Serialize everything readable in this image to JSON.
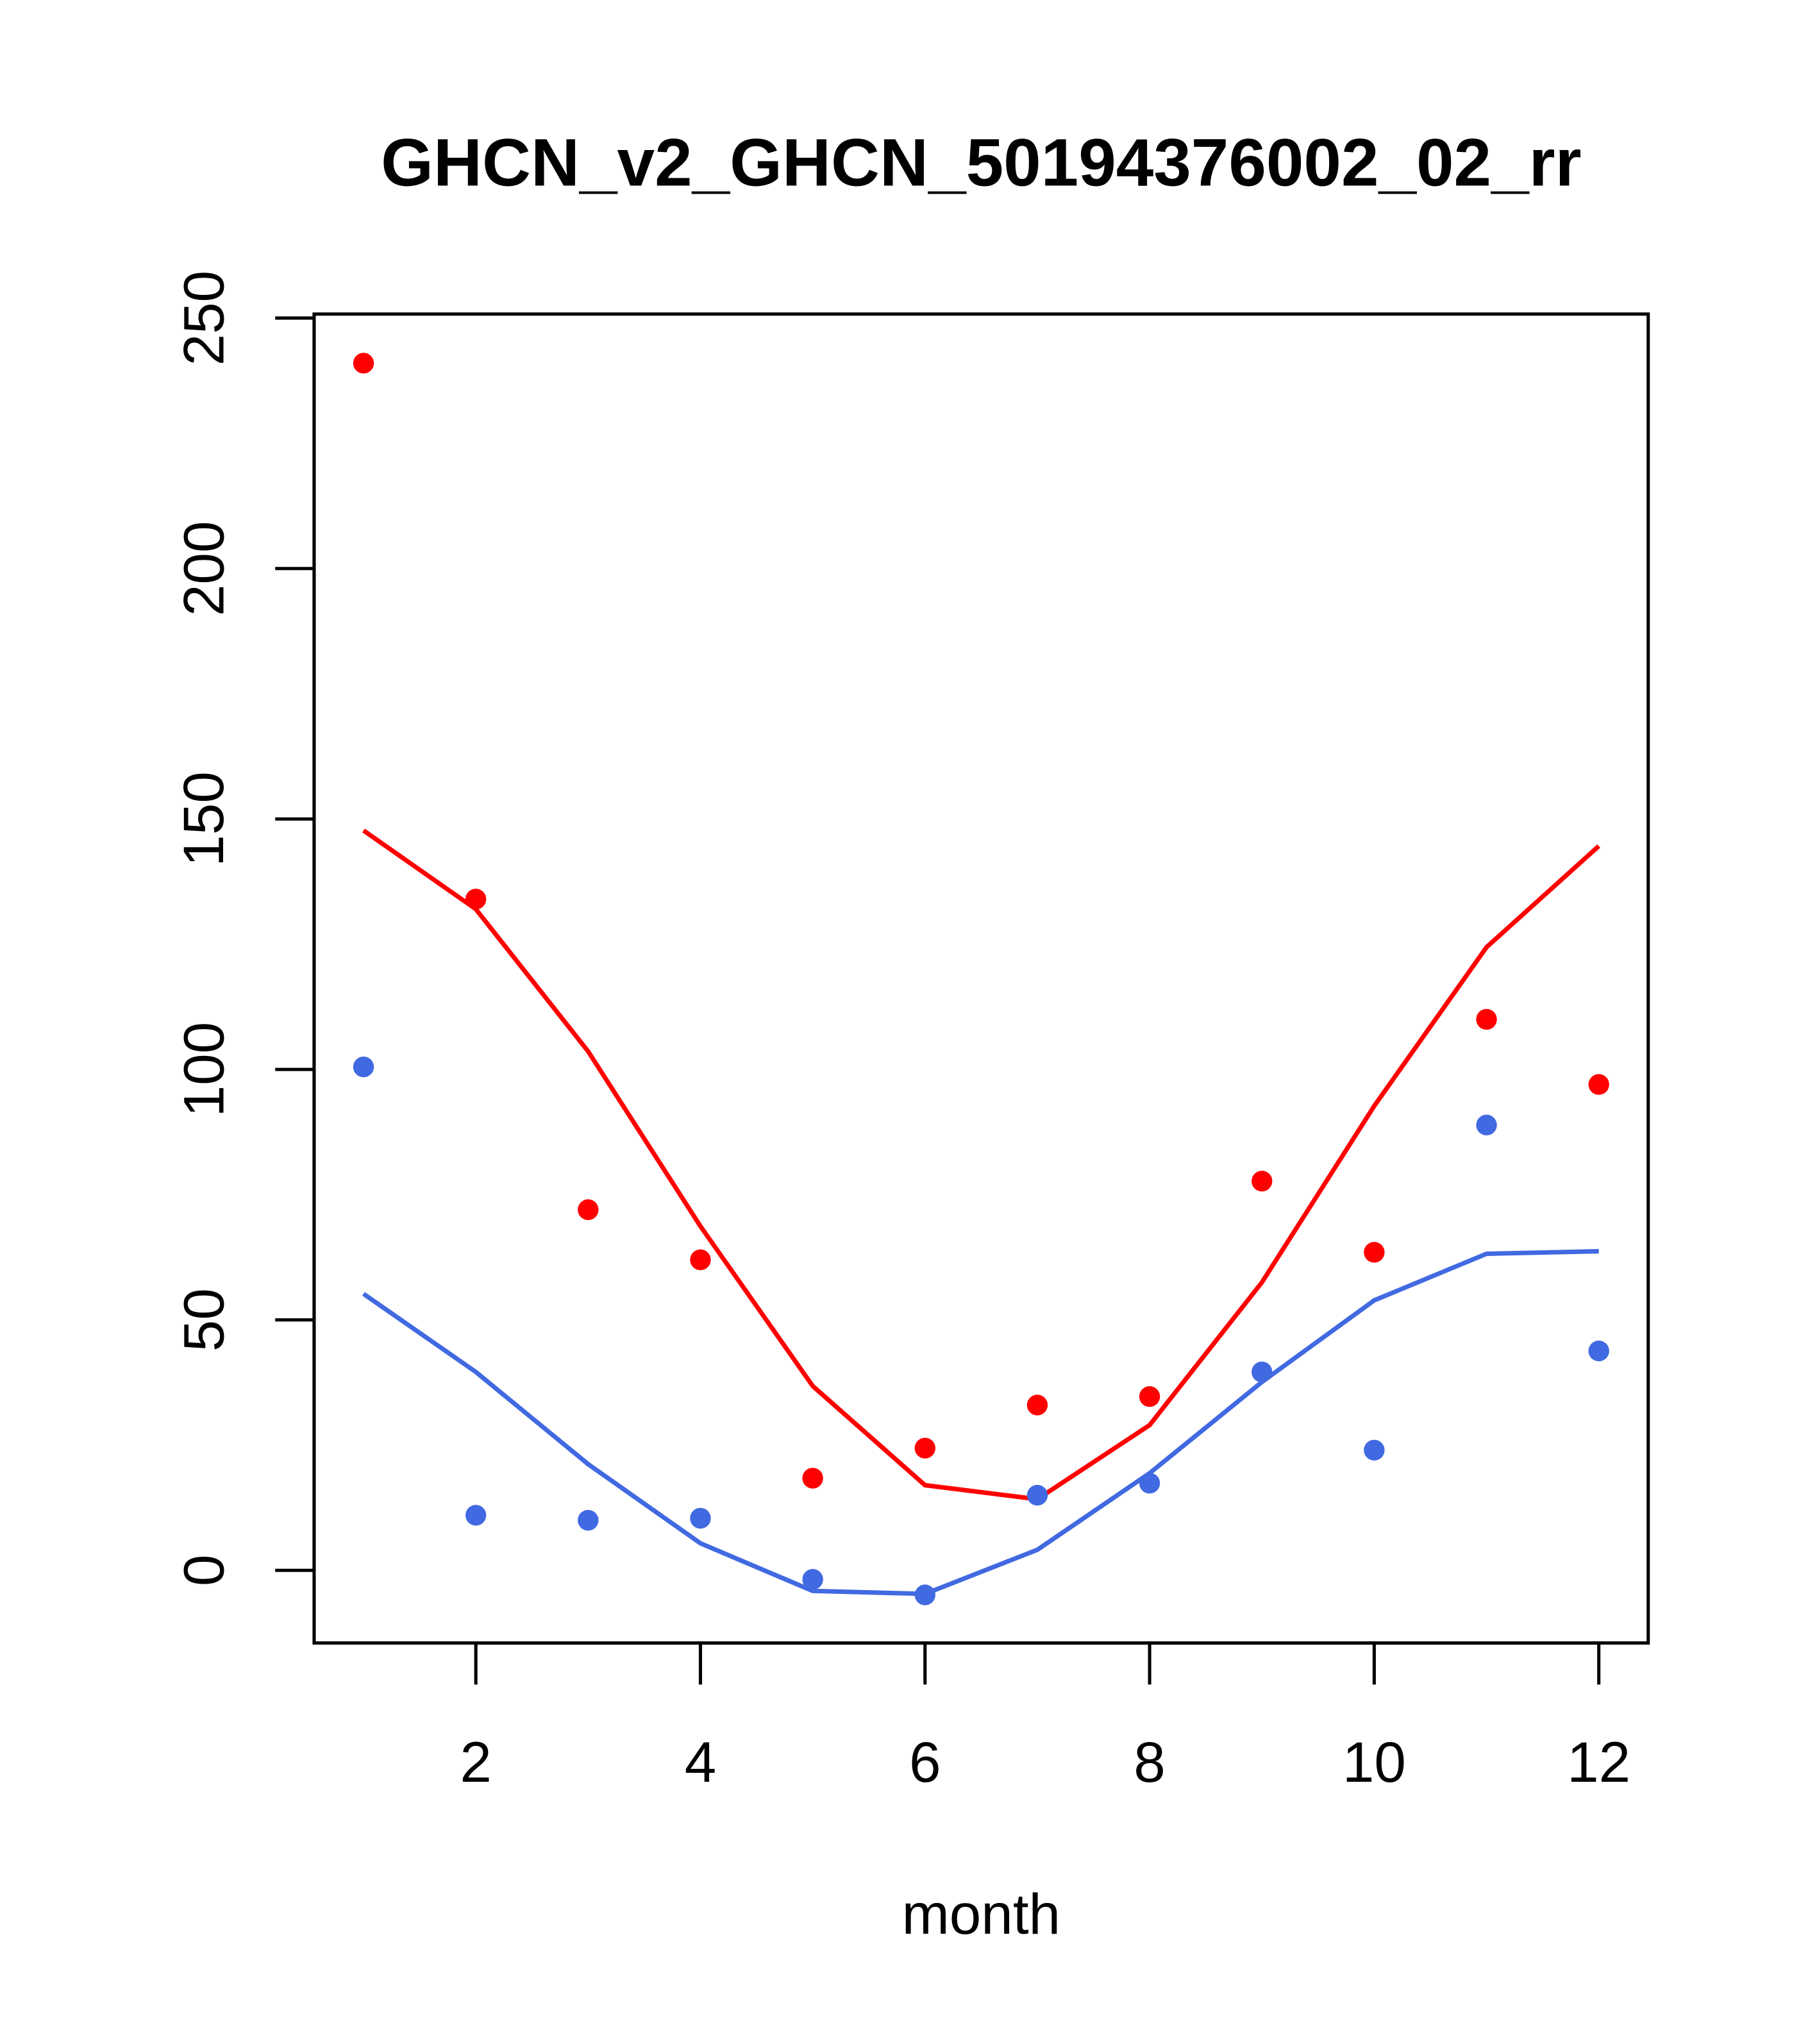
{
  "chart_data": {
    "type": "scatter",
    "title": "GHCN_v2_GHCN_50194376002_02_rr",
    "xlabel": "month",
    "ylabel": "",
    "xlim": [
      0.56,
      12.44
    ],
    "ylim": [
      -14.5,
      250.8
    ],
    "xticks": [
      2,
      4,
      6,
      8,
      10,
      12
    ],
    "yticks": [
      0,
      50,
      100,
      150,
      200,
      250
    ],
    "grid": false,
    "x": [
      1,
      2,
      3,
      4,
      5,
      6,
      7,
      8,
      9,
      10,
      11,
      12
    ],
    "series": [
      {
        "name": "red-points",
        "kind": "points",
        "color": "#FF0000",
        "values": [
          241,
          134,
          72,
          62,
          18.4,
          24.4,
          33,
          34.7,
          77.7,
          63.5,
          110,
          97
        ]
      },
      {
        "name": "red-line",
        "kind": "line",
        "color": "#FF0000",
        "values": [
          147.7,
          132,
          103.6,
          68.7,
          36.8,
          17,
          14.2,
          29,
          57.5,
          92.7,
          124.4,
          144.6
        ]
      },
      {
        "name": "blue-points",
        "kind": "points",
        "color": "#4169E1",
        "values": [
          100.5,
          11,
          10,
          10.4,
          -1.8,
          -4.9,
          15,
          17.4,
          39.6,
          24,
          88.9,
          43.8
        ]
      },
      {
        "name": "blue-line",
        "kind": "line",
        "color": "#4169E1",
        "values": [
          55.2,
          39.6,
          21.2,
          5.4,
          -4.1,
          -4.7,
          4.1,
          19.4,
          37.6,
          53.9,
          63.2,
          63.7
        ]
      }
    ]
  }
}
